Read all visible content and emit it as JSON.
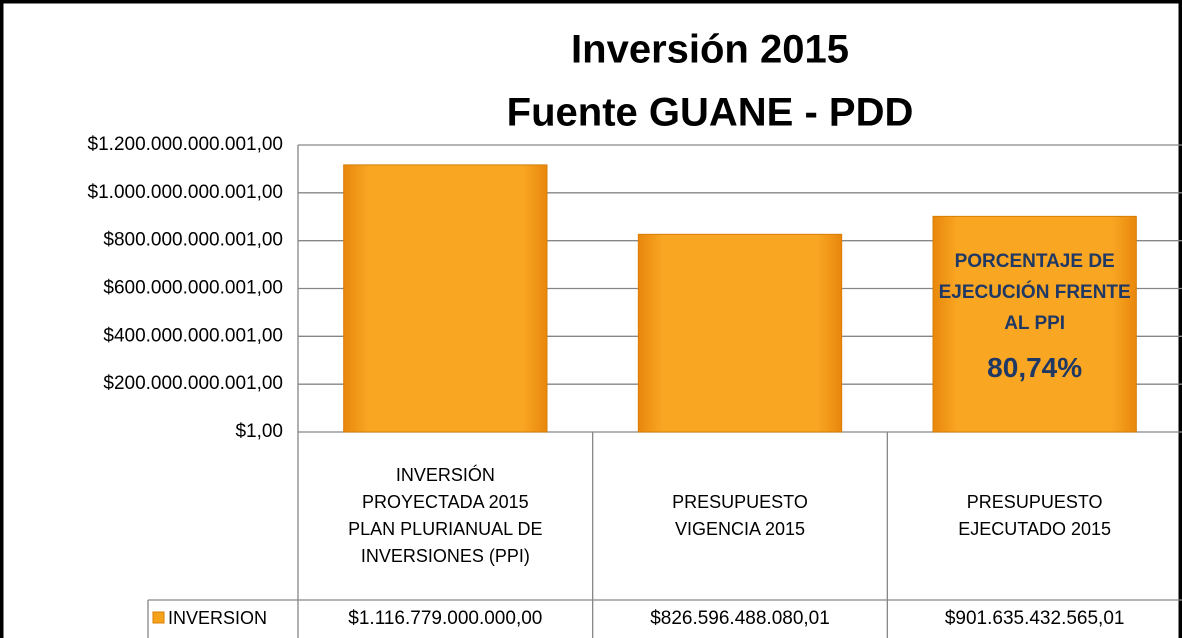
{
  "chart_data": {
    "type": "bar",
    "title": "Inversión 2015",
    "subtitle": "Fuente GUANE - PDD",
    "categories": [
      "INVERSIÓN PROYECTADA 2015 PLAN PLURIANUAL DE INVERSIONES (PPI)",
      "PRESUPUESTO VIGENCIA 2015",
      "PRESUPUESTO EJECUTADO 2015"
    ],
    "series": [
      {
        "name": "INVERSION",
        "color": "#f7a21b",
        "values": [
          1116779000000,
          826596488080.01,
          901635432565.01
        ],
        "value_labels": [
          "$1.116.779.000.000,00",
          "$826.596.488.080,01",
          "$901.635.432.565,01"
        ]
      }
    ],
    "ylim": [
      1,
      1200000000001
    ],
    "yticks": [
      {
        "value": 1,
        "label": "$1,00"
      },
      {
        "value": 200000000001,
        "label": "$200.000.000.001,00"
      },
      {
        "value": 400000000001,
        "label": "$400.000.000.001,00"
      },
      {
        "value": 600000000001,
        "label": "$600.000.000.001,00"
      },
      {
        "value": 800000000001,
        "label": "$800.000.000.001,00"
      },
      {
        "value": 1000000000001,
        "label": "$1.000.000.000.001,00"
      },
      {
        "value": 1200000000001,
        "label": "$1.200.000.000.001,00"
      }
    ],
    "grid": true,
    "annotations": [
      "PORCENTAJE DE EJECUCIÓN FRENTE AL  PPI",
      "80,74%"
    ]
  }
}
